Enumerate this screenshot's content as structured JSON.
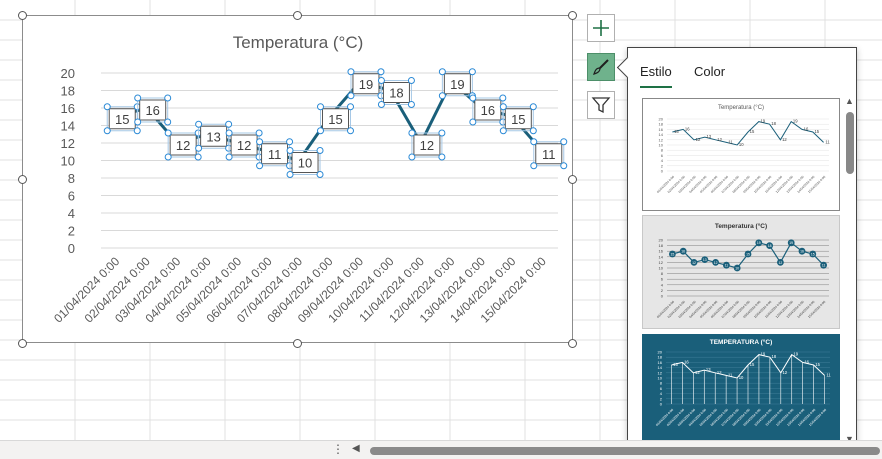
{
  "chart_data": {
    "type": "line",
    "title": "Temperatura (°C)",
    "categories": [
      "01/04/2024 0:00",
      "02/04/2024 0:00",
      "03/04/2024 0:00",
      "04/04/2024 0:00",
      "05/04/2024 0:00",
      "06/04/2024 0:00",
      "07/04/2024 0:00",
      "08/04/2024 0:00",
      "09/04/2024 0:00",
      "10/04/2024 0:00",
      "11/04/2024 0:00",
      "12/04/2024 0:00",
      "13/04/2024 0:00",
      "14/04/2024 0:00",
      "15/04/2024 0:00"
    ],
    "values": [
      15,
      16,
      12,
      13,
      12,
      11,
      10,
      15,
      19,
      18,
      12,
      19,
      16,
      15,
      11
    ],
    "ylim": [
      0,
      20
    ],
    "yticks": [
      0,
      2,
      4,
      6,
      8,
      10,
      12,
      14,
      16,
      18,
      20
    ],
    "grid": true,
    "line_color": "#1a5f7a"
  },
  "pane": {
    "tabs": [
      {
        "label": "Estilo"
      },
      {
        "label": "Color"
      }
    ],
    "thumb_titles": [
      "Temperatura (°C)",
      "Temperatura (°C)",
      "TEMPERATURA (°C)"
    ]
  },
  "side_buttons": [
    "chart-elements",
    "chart-styles",
    "chart-filters"
  ],
  "colors": {
    "accent": "#1e7145",
    "style_button": "#6fb28c",
    "dark_theme": "#1a5f7a"
  }
}
